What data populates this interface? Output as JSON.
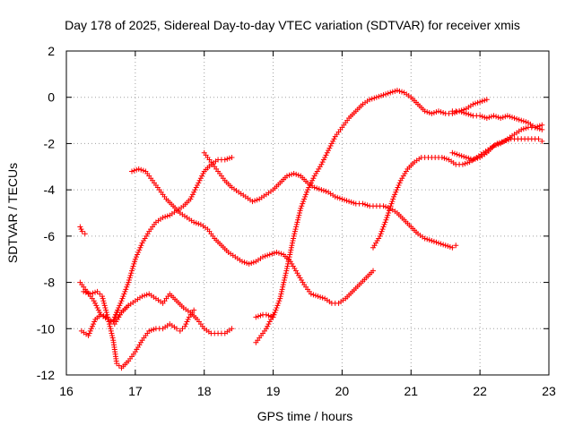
{
  "chart_data": {
    "type": "scatter",
    "title": "Day 178 of 2025, Sidereal Day-to-day VTEC variation (SDTVAR) for receiver xmis",
    "xlabel": "GPS time / hours",
    "ylabel": "SDTVAR / TECUs",
    "xlim": [
      16,
      23
    ],
    "ylim": [
      -12,
      2
    ],
    "xticks": [
      "16",
      "17",
      "18",
      "19",
      "20",
      "21",
      "22",
      "23"
    ],
    "yticks": [
      "2",
      "0",
      "-2",
      "-4",
      "-6",
      "-8",
      "-10",
      "-12"
    ],
    "grid": true,
    "marker": "plus",
    "color": "#ff0000",
    "series": [
      {
        "x": [
          16.2,
          16.23,
          16.27
        ],
        "y": [
          -5.6,
          -5.8,
          -5.9
        ]
      },
      {
        "x": [
          16.22,
          16.32,
          16.42,
          16.5,
          16.58,
          16.65,
          16.72,
          16.8,
          16.9
        ],
        "y": [
          -10.1,
          -10.3,
          -9.6,
          -9.4,
          -9.5,
          -9.7,
          -9.6,
          -9.3,
          -9.0
        ]
      },
      {
        "x": [
          16.2,
          16.3,
          16.4,
          16.5,
          16.6,
          16.68,
          16.75
        ],
        "y": [
          -8.0,
          -8.4,
          -8.8,
          -9.4,
          -9.6,
          -9.7,
          -9.2
        ]
      },
      {
        "x": [
          16.25,
          16.35,
          16.45,
          16.52,
          16.6,
          16.68,
          16.73,
          16.8,
          16.9,
          17.0,
          17.1,
          17.2,
          17.3,
          17.4,
          17.5,
          17.6,
          17.65,
          17.72,
          17.78,
          17.85
        ],
        "y": [
          -8.4,
          -8.5,
          -8.4,
          -8.6,
          -9.5,
          -10.5,
          -11.5,
          -11.7,
          -11.4,
          -11.0,
          -10.5,
          -10.1,
          -10.0,
          -10.0,
          -9.8,
          -10.0,
          -10.1,
          -9.9,
          -9.5,
          -9.2
        ]
      },
      {
        "x": [
          16.7,
          16.8,
          16.9,
          17.0,
          17.1,
          17.2,
          17.3,
          17.4,
          17.5,
          17.6,
          17.7,
          17.8,
          17.9,
          18.0,
          18.1,
          18.2,
          18.3,
          18.4
        ],
        "y": [
          -9.8,
          -9.3,
          -9.0,
          -8.8,
          -8.6,
          -8.5,
          -8.7,
          -8.9,
          -8.5,
          -8.8,
          -9.1,
          -9.3,
          -9.6,
          -10.0,
          -10.2,
          -10.2,
          -10.2,
          -10.0
        ]
      },
      {
        "x": [
          16.7,
          16.8,
          16.9,
          17.0,
          17.1,
          17.2,
          17.3,
          17.4,
          17.5,
          17.6,
          17.7,
          17.8,
          17.9,
          18.0,
          18.1,
          18.2,
          18.3,
          18.4
        ],
        "y": [
          -9.5,
          -8.8,
          -8.0,
          -7.0,
          -6.3,
          -5.8,
          -5.4,
          -5.2,
          -5.1,
          -4.9,
          -4.7,
          -4.4,
          -3.8,
          -3.2,
          -2.9,
          -2.7,
          -2.7,
          -2.6
        ]
      },
      {
        "x": [
          16.95,
          17.05,
          17.15,
          17.25,
          17.35,
          17.45,
          17.55,
          17.65,
          17.75,
          17.85,
          17.95,
          18.05,
          18.15,
          18.25,
          18.35,
          18.45,
          18.55,
          18.65,
          18.75,
          18.85,
          18.95,
          19.05,
          19.15,
          19.25,
          19.35,
          19.45,
          19.55,
          19.65,
          19.75,
          19.85,
          19.95,
          20.05,
          20.15,
          20.25,
          20.35,
          20.45
        ],
        "y": [
          -3.2,
          -3.1,
          -3.2,
          -3.6,
          -4.0,
          -4.4,
          -4.7,
          -5.0,
          -5.2,
          -5.4,
          -5.5,
          -5.7,
          -6.1,
          -6.4,
          -6.7,
          -6.9,
          -7.1,
          -7.2,
          -7.1,
          -6.9,
          -6.8,
          -6.7,
          -6.8,
          -7.1,
          -7.6,
          -8.1,
          -8.5,
          -8.6,
          -8.7,
          -8.9,
          -8.9,
          -8.7,
          -8.4,
          -8.1,
          -7.8,
          -7.5
        ]
      },
      {
        "x": [
          18.0,
          18.1,
          18.2,
          18.3,
          18.4,
          18.5,
          18.6,
          18.7,
          18.8,
          18.9,
          19.0,
          19.1,
          19.2,
          19.3,
          19.4,
          19.5,
          19.6,
          19.7,
          19.8,
          19.9,
          20.0,
          20.1,
          20.2,
          20.3,
          20.4,
          20.5,
          20.6,
          20.7,
          20.8,
          20.9,
          21.0,
          21.1,
          21.2,
          21.3,
          21.4,
          21.5,
          21.6,
          21.65
        ],
        "y": [
          -2.4,
          -2.8,
          -3.2,
          -3.6,
          -3.9,
          -4.1,
          -4.3,
          -4.5,
          -4.4,
          -4.2,
          -4.0,
          -3.7,
          -3.4,
          -3.3,
          -3.4,
          -3.7,
          -3.9,
          -4.0,
          -4.1,
          -4.3,
          -4.4,
          -4.5,
          -4.6,
          -4.6,
          -4.7,
          -4.7,
          -4.7,
          -4.8,
          -5.0,
          -5.3,
          -5.6,
          -5.9,
          -6.1,
          -6.2,
          -6.3,
          -6.4,
          -6.5,
          -6.4
        ]
      },
      {
        "x": [
          18.75,
          18.85,
          18.9,
          19.0,
          19.1,
          19.2,
          19.3,
          19.4,
          19.5,
          19.6,
          19.7,
          19.8,
          19.9,
          20.0,
          20.1,
          20.2,
          20.3,
          20.4,
          20.5,
          20.6,
          20.7,
          20.8,
          20.9,
          21.0,
          21.1,
          21.2,
          21.3,
          21.4,
          21.5,
          21.6,
          21.7,
          21.8,
          21.9,
          22.0,
          22.1
        ],
        "y": [
          -9.5,
          -9.4,
          -9.4,
          -9.5,
          -8.7,
          -7.4,
          -6.0,
          -4.8,
          -4.0,
          -3.4,
          -2.9,
          -2.3,
          -1.7,
          -1.3,
          -0.9,
          -0.6,
          -0.3,
          -0.1,
          0.0,
          0.1,
          0.2,
          0.3,
          0.2,
          0.0,
          -0.3,
          -0.6,
          -0.7,
          -0.6,
          -0.7,
          -0.7,
          -0.6,
          -0.5,
          -0.3,
          -0.2,
          -0.1
        ]
      },
      {
        "x": [
          18.75,
          18.8,
          18.85,
          18.9,
          18.95,
          19.0
        ],
        "y": [
          -10.6,
          -10.4,
          -10.2,
          -10.0,
          -9.7,
          -9.4
        ]
      },
      {
        "x": [
          20.45,
          20.55,
          20.65,
          20.75,
          20.85,
          20.95,
          21.05,
          21.15,
          21.25,
          21.35,
          21.45,
          21.55,
          21.65,
          21.75,
          21.85,
          21.95,
          22.05,
          22.15,
          22.25,
          22.35,
          22.45,
          22.55,
          22.65,
          22.75,
          22.85,
          22.9
        ],
        "y": [
          -6.5,
          -6.0,
          -5.2,
          -4.3,
          -3.6,
          -3.1,
          -2.8,
          -2.6,
          -2.6,
          -2.6,
          -2.6,
          -2.7,
          -2.9,
          -2.9,
          -2.8,
          -2.6,
          -2.4,
          -2.2,
          -2.0,
          -1.9,
          -1.8,
          -1.8,
          -1.8,
          -1.8,
          -1.8,
          -1.9
        ]
      },
      {
        "x": [
          21.6,
          21.7,
          21.8,
          21.9,
          22.0,
          22.1,
          22.2,
          22.3,
          22.4,
          22.5,
          22.6,
          22.7,
          22.8,
          22.9
        ],
        "y": [
          -2.4,
          -2.5,
          -2.6,
          -2.7,
          -2.6,
          -2.4,
          -2.1,
          -2.0,
          -1.8,
          -1.6,
          -1.4,
          -1.3,
          -1.3,
          -1.2
        ]
      },
      {
        "x": [
          21.6,
          21.7,
          21.8,
          21.9,
          22.0,
          22.1,
          22.2,
          22.3,
          22.4,
          22.5,
          22.6,
          22.7,
          22.8,
          22.9
        ],
        "y": [
          -0.6,
          -0.6,
          -0.7,
          -0.8,
          -0.8,
          -0.9,
          -0.8,
          -0.9,
          -0.8,
          -0.9,
          -1.0,
          -1.1,
          -1.3,
          -1.4
        ]
      }
    ]
  }
}
